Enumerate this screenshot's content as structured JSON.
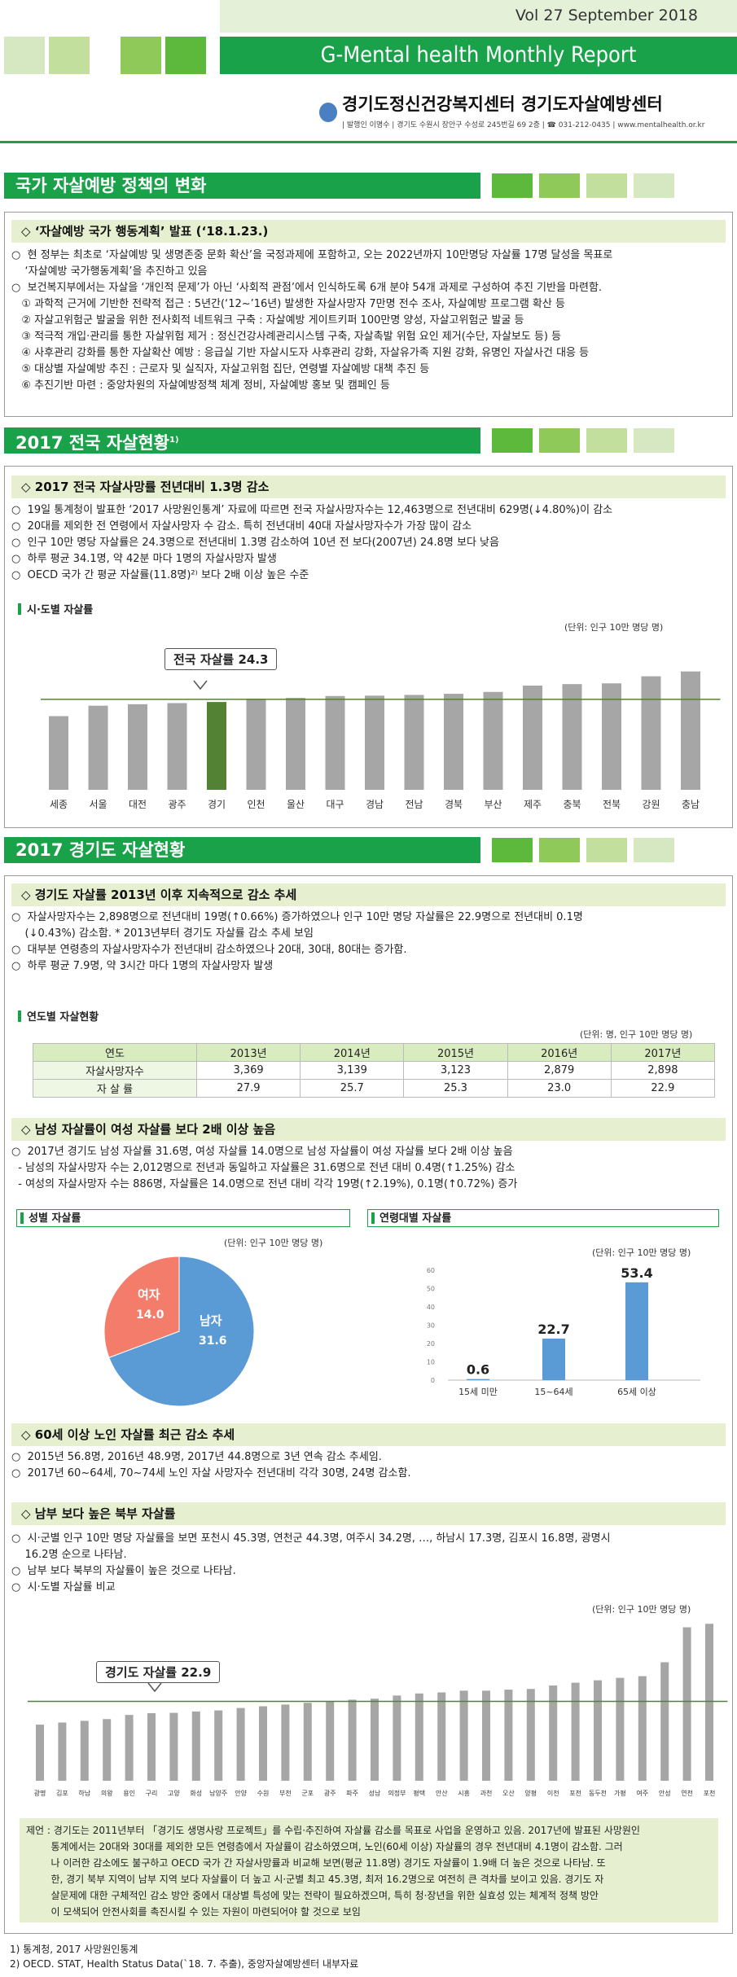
{
  "header": {
    "volume": "Vol 27   September 2018",
    "title": "G-Mental health Monthly Report",
    "org": "경기도정신건강복지센터  경기도자살예방센터",
    "address": "| 발행인 이명수 | 경기도 수원시 장안구 수성로 245번길 69 2층 | ☎ 031-212-0435 | www.mentalhealth.or.kr"
  },
  "colors": {
    "green": "#1aa24a",
    "light_green": "#e6efcf",
    "bar_gray": "#a6a6a6",
    "bar_highlight": "#548235",
    "pie_male": "#5b9bd5",
    "pie_female": "#f47c6a",
    "age_bar": "#5b9bd5"
  },
  "sec1": {
    "title": "국가 자살예방 정책의 변화",
    "sub": "◇ ‘자살예방 국가 행동계획’ 발표 (‘18.1.23.)",
    "lines": [
      "○  현 정부는 최초로 ‘자살예방 및 생명존중 문화 확산’을 국정과제에 포함하고, 오는 2022년까지 10만명당 자살률 17명 달성을 목표로",
      "    ‘자살예방 국가행동계획’을 추진하고 있음",
      "○  보건복지부에서는 자살을 ‘개인적 문제’가 아닌 ‘사회적 관점’에서 인식하도록 6개 분야 54개 과제로 구성하여 추진 기반을 마련함.",
      "   ① 과학적 근거에 기반한 전략적 접근 : 5년간(‘12~’16년) 발생한 자살사망자 7만명 전수 조사, 자살예방 프로그램 확산 등",
      "   ② 자살고위험군 발굴을 위한 전사회적 네트워크 구축 : 자살예방 게이트키퍼 100만명 양성, 자살고위험군 발굴 등",
      "   ③ 적극적 개입·관리를 통한 자살위험 제거 : 정신건강사례관리시스템 구축, 자살촉발 위험 요인 제거(수단, 자살보도 등) 등",
      "   ④ 사후관리 강화를 통한 자살확산 예방 : 응급실 기반 자살시도자 사후관리 강화, 자살유가족 지원 강화, 유명인 자살사건 대응 등",
      "   ⑤ 대상별 자살예방 추진 : 근로자 및 실직자, 자살고위험 집단, 연령별 자살예방 대책 추진 등",
      "   ⑥ 추진기반 마련 : 중앙차원의 자살예방정책 체계 정비, 자살예방 홍보 및 캠페인 등"
    ]
  },
  "sec2": {
    "title": "2017 전국 자살현황",
    "title_sup": "1)",
    "sub": "◇ 2017 전국 자살사망률 전년대비 1.3명 감소",
    "lines": [
      "○  19일 통계청이 발표한 ‘2017 사망원인통계’ 자료에 따르면 전국 자살사망자수는 12,463명으로 전년대비 629명(↓4.80%)이 감소",
      "○  20대를 제외한 전 연령에서 자살사망자 수 감소. 특히 전년대비 40대 자살사망자수가 가장 많이 감소",
      "○  인구 10만 명당 자살률은 24.3명으로 전년대비 1.3명 감소하여 10년 전 보다(2007년) 24.8명 보다 낮음",
      "○  하루 평균 34.1명, 약 42분 마다 1명의 자살사망자 발생",
      "○  OECD 국가 간 평균 자살률(11.8명)²⁾ 보다 2배 이상 높은 수준"
    ],
    "chart_label": "시·도별 자살률",
    "unit": "(단위: 인구 10만 명당 명)",
    "callout": "전국 자살률 24.3"
  },
  "chart_data": [
    {
      "type": "bar",
      "title": "시·도별 자살률",
      "categories": [
        "세종",
        "서울",
        "대전",
        "광주",
        "경기",
        "인천",
        "울산",
        "대구",
        "경남",
        "전남",
        "경북",
        "부산",
        "제주",
        "충북",
        "전북",
        "강원",
        "충남"
      ],
      "values": [
        19.8,
        22.6,
        23.0,
        23.3,
        23.6,
        24.5,
        24.7,
        25.2,
        25.3,
        25.5,
        25.8,
        26.3,
        28.0,
        28.4,
        28.6,
        30.5,
        31.8
      ],
      "highlight": "경기",
      "reference_line": 24.3,
      "ylim": [
        0,
        35
      ]
    },
    {
      "type": "table",
      "title": "연도별 자살현황",
      "columns": [
        "연도",
        "2013년",
        "2014년",
        "2015년",
        "2016년",
        "2017년"
      ],
      "rows": [
        [
          "자살사망자수",
          "3,369",
          "3,139",
          "3,123",
          "2,879",
          "2,898"
        ],
        [
          "자 살 률",
          "27.9",
          "25.7",
          "25.3",
          "23.0",
          "22.9"
        ]
      ]
    },
    {
      "type": "pie",
      "title": "성별 자살률",
      "labels": [
        "남자",
        "여자"
      ],
      "values": [
        31.6,
        14.0
      ]
    },
    {
      "type": "bar",
      "title": "연령대별 자살률",
      "categories": [
        "15세 미만",
        "15~64세",
        "65세 이상"
      ],
      "values": [
        0.6,
        22.7,
        53.4
      ],
      "ylim": [
        0,
        60
      ],
      "yticks": [
        0,
        10,
        20,
        30,
        40,
        50,
        60
      ]
    },
    {
      "type": "bar",
      "title": "시·군별 자살률 비교",
      "categories": [
        "광명",
        "김포",
        "하남",
        "의왕",
        "용인",
        "구리",
        "고양",
        "화성",
        "남양주",
        "안양",
        "수원",
        "부천",
        "군포",
        "광주",
        "파주",
        "성남",
        "의정부",
        "평택",
        "안산",
        "시흥",
        "과천",
        "오산",
        "양평",
        "이천",
        "포천",
        "동두천",
        "가평",
        "여주",
        "안성",
        "연천",
        "포천"
      ],
      "values": [
        16.2,
        16.8,
        17.3,
        17.8,
        19.0,
        19.5,
        19.6,
        20.0,
        20.3,
        21.0,
        21.5,
        22.0,
        22.5,
        23.0,
        23.4,
        23.7,
        24.6,
        25.2,
        25.5,
        26.0,
        26.0,
        26.3,
        26.5,
        27.5,
        28.3,
        29.0,
        29.7,
        30.2,
        34.2,
        44.3,
        45.3
      ],
      "reference_line": 22.9,
      "ylim": [
        0,
        47
      ]
    }
  ],
  "sec3": {
    "title": "2017 경기도 자살현황",
    "sub1": "◇ 경기도 자살률 2013년 이후 지속적으로 감소 추세",
    "lines1": [
      "○  자살사망자수는 2,898명으로 전년대비 19명(↑0.66%) 증가하였으나 인구 10만 명당 자살률은 22.9명으로 전년대비 0.1명",
      "    (↓0.43%) 감소함. * 2013년부터 경기도 자살률 감소 추세 보임",
      "○  대부분 연령층의 자살사망자수가 전년대비 감소하였으나 20대, 30대, 80대는 증가함.",
      "○  하루 평균 7.9명, 약 3시간 마다 1명의 자살사망자 발생"
    ],
    "table_label": "연도별 자살현황",
    "table_unit": "(단위: 명, 인구 10만 명당 명)",
    "sub2": "◇ 남성 자살률이 여성 자살률 보다 2배 이상 높음",
    "lines2": [
      "○  2017년 경기도 남성 자살률 31.6명, 여성 자살률 14.0명으로 남성 자살률이 여성 자살률 보다 2배 이상 높음",
      "  - 남성의 자살사망자 수는 2,012명으로 전년과 동일하고 자살률은 31.6명으로 전년 대비 0.4명(↑1.25%) 감소",
      "  - 여성의 자살사망자 수는 886명, 자살률은 14.0명으로 전년 대비 각각 19명(↑2.19%), 0.1명(↑0.72%) 증가"
    ],
    "gender_label": "성별 자살률",
    "gender_unit": "(단위: 인구 10만 명당 명)",
    "pie_male_label": "남자",
    "pie_male_value": "31.6",
    "pie_female_label": "여자",
    "pie_female_value": "14.0",
    "age_label": "연령대별 자살률",
    "age_unit": "(단위: 인구 10만 명당 명)",
    "sub3": "◇ 60세 이상 노인 자살률 최근 감소 추세",
    "lines3": [
      "○  2015년 56.8명, 2016년 48.9명, 2017년 44.8명으로 3년 연속 감소 추세임.",
      "○  2017년 60~64세, 70~74세 노인 자살 사망자수 전년대비 각각 30명, 24명 감소함."
    ],
    "sub4": "◇ 남부 보다 높은 북부 자살률",
    "lines4": [
      "○  시·군별 인구 10만 명당 자살률을 보면 포천시 45.3명, 연천군 44.3명, 여주시 34.2명, …, 하남시 17.3명, 김포시 16.8명, 광명시",
      "    16.2명 순으로 나타남.",
      "○  남부 보다 북부의 자살률이 높은 것으로 나타남.",
      "○  시·도별 자살률 비교"
    ],
    "city_unit": "(단위: 인구 10만 명당 명)",
    "city_callout": "경기도 자살률 22.9"
  },
  "proposal": [
    "제언 : 경기도는 2011년부터 「경기도 생명사랑 프로젝트」를 수립·추진하여 자살률 감소를 목표로 사업을 운영하고 있음. 2017년에 발표된 사망원인",
    "        통계에서는 20대와 30대를 제외한 모든 연령층에서 자살률이 감소하였으며, 노인(60세 이상) 자살률의 경우 전년대비 4.1명이 감소함. 그러",
    "        나 이러한 감소에도 불구하고 OECD 국가 간 자살사망률과 비교해 보면(평균 11.8명) 경기도 자살률이 1.9배 더 높은 것으로 나타남. 또",
    "        한, 경기 북부 지역이 남부 지역 보다 자살률이 더 높고 시·군별 최고 45.3명, 최저 16.2명으로 여전히 큰 격차를 보이고 있음. 경기도 자",
    "        살문제에 대한 구체적인 감소 방안 중에서 대상별 특성에 맞는 전략이 필요하겠으며, 특히 청·장년을 위한 실효성 있는 체계적 정책 방안",
    "        이 모색되어 안전사회를 촉진시킬 수 있는 자원이 마련되어야 할 것으로 보임"
  ],
  "footnotes": [
    "1) 통계청, 2017 사망원인통계",
    "2) OECD. STAT, Health Status Data(`18. 7. 추출), 중앙자살예방센터 내부자료"
  ]
}
